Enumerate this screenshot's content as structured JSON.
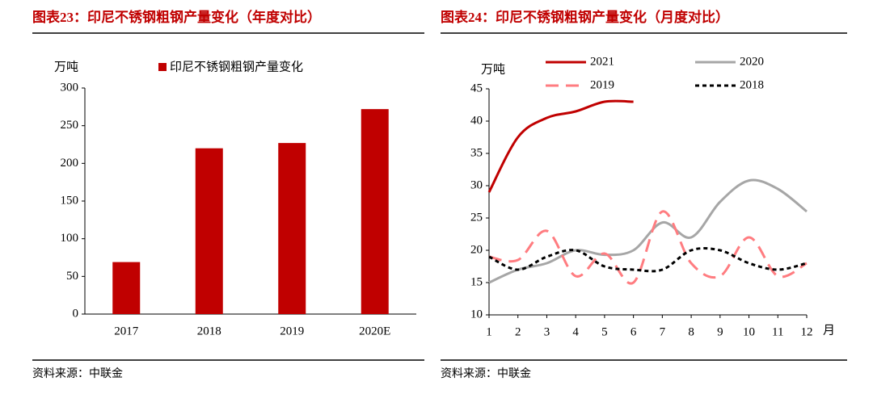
{
  "chart_data": [
    {
      "type": "bar",
      "title": "图表23：印尼不锈钢粗钢产量变化（年度对比）",
      "ylabel": "万吨",
      "categories": [
        "2017",
        "2018",
        "2019",
        "2020E"
      ],
      "series": [
        {
          "name": "印尼不锈钢粗钢产量变化",
          "color": "#c00000",
          "values": [
            69,
            220,
            227,
            272
          ]
        }
      ],
      "ylim": [
        0,
        300
      ],
      "yticks": [
        0,
        50,
        100,
        150,
        200,
        250,
        300
      ],
      "grid": false,
      "source": "资料来源：中联金"
    },
    {
      "type": "line",
      "title": "图表24：印尼不锈钢粗钢产量变化（月度对比）",
      "ylabel": "万吨",
      "xlabel": "月",
      "x": [
        1,
        2,
        3,
        4,
        5,
        6,
        7,
        8,
        9,
        10,
        11,
        12
      ],
      "series": [
        {
          "name": "2021",
          "color": "#c00000",
          "dash": "solid",
          "values": [
            29,
            37.5,
            40.5,
            41.5,
            43,
            43,
            null,
            null,
            null,
            null,
            null,
            null
          ]
        },
        {
          "name": "2020",
          "color": "#a6a6a6",
          "dash": "solid",
          "values": [
            15,
            17,
            18,
            20,
            19.3,
            20,
            24.3,
            22,
            27.5,
            30.8,
            29.5,
            26
          ]
        },
        {
          "name": "2019",
          "color": "#ff7c80",
          "dash": "dashed",
          "values": [
            19,
            18.5,
            23,
            16,
            19.5,
            15,
            26,
            18,
            16,
            22,
            16,
            18
          ]
        },
        {
          "name": "2018",
          "color": "#000000",
          "dash": "dotted",
          "values": [
            19,
            17,
            19,
            20,
            17.5,
            17,
            17,
            20,
            20,
            18,
            17,
            18
          ]
        }
      ],
      "xlim": [
        1,
        12
      ],
      "xticks": [
        1,
        2,
        3,
        4,
        5,
        6,
        7,
        8,
        9,
        10,
        11,
        12
      ],
      "ylim": [
        10,
        45
      ],
      "yticks": [
        10,
        15,
        20,
        25,
        30,
        35,
        40,
        45
      ],
      "grid": false,
      "source": "资料来源：中联金"
    }
  ]
}
